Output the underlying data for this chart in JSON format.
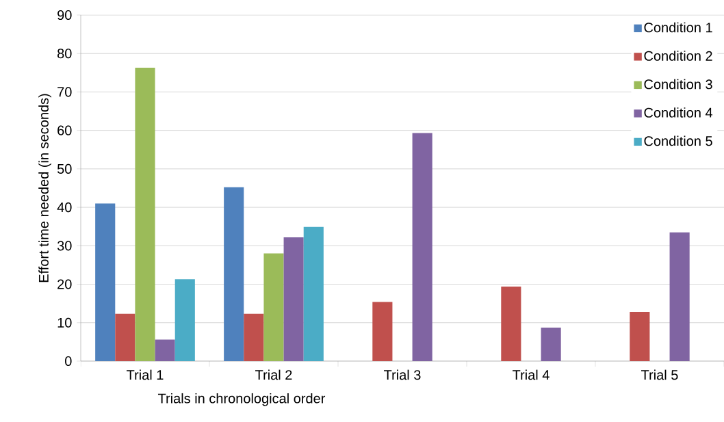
{
  "chart_data": {
    "type": "bar",
    "xlabel": "Trials in chronological order",
    "ylabel": "Effort time needed (in seconds)",
    "categories": [
      "Trial 1",
      "Trial 2",
      "Trial 3",
      "Trial 4",
      "Trial 5"
    ],
    "series": [
      {
        "name": "Condition 1",
        "color": "#4f81bd",
        "values": [
          41,
          45.2,
          null,
          null,
          null
        ]
      },
      {
        "name": "Condition 2",
        "color": "#c0504d",
        "values": [
          12.3,
          12.3,
          15.4,
          19.4,
          12.8
        ]
      },
      {
        "name": "Condition 3",
        "color": "#9bbb59",
        "values": [
          76.3,
          28,
          null,
          null,
          null
        ]
      },
      {
        "name": "Condition 4",
        "color": "#8064a2",
        "values": [
          5.6,
          32.2,
          59.3,
          8.7,
          33.5
        ]
      },
      {
        "name": "Condition 5",
        "color": "#4bacc6",
        "values": [
          21.3,
          34.9,
          null,
          null,
          null
        ]
      }
    ],
    "ylim": [
      0,
      90
    ],
    "yticks": [
      0,
      10,
      20,
      30,
      40,
      50,
      60,
      70,
      80,
      90
    ],
    "grid": "y",
    "legend": "top right"
  }
}
